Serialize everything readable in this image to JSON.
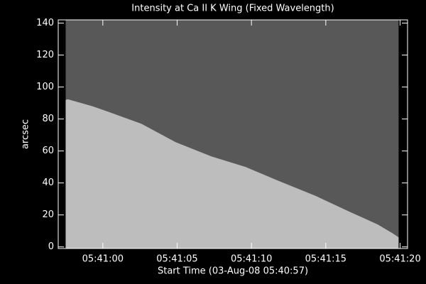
{
  "chart_data": {
    "type": "area",
    "title": "Intensity at Ca II K Wing (Fixed Wavelength)",
    "xlabel": "Start Time (03-Aug-08 05:40:57)",
    "ylabel": "arcsec",
    "x": [
      0.5,
      0.66,
      2.3,
      3.23,
      5.6,
      7.9,
      10.3,
      12.6,
      14.9,
      17.3,
      19.6,
      21.5,
      22.5,
      22.9
    ],
    "series": [
      {
        "color": "#bdbdbd",
        "values": [
          92,
          92.3,
          88,
          85,
          77,
          65.5,
          56.6,
          50,
          41,
          32,
          22,
          14,
          8.5,
          6
        ]
      }
    ],
    "background_color": "#585858",
    "xlim": [
      0,
      23.5
    ],
    "xticks": [
      {
        "value": 3,
        "label": "05:41:00"
      },
      {
        "value": 8,
        "label": "05:41:05"
      },
      {
        "value": 13,
        "label": "05:41:10"
      },
      {
        "value": 18,
        "label": "05:41:15"
      },
      {
        "value": 23,
        "label": "05:41:20"
      }
    ],
    "ylim": [
      -1,
      142
    ],
    "yticks": [
      0,
      20,
      40,
      60,
      80,
      100,
      120,
      140
    ]
  }
}
